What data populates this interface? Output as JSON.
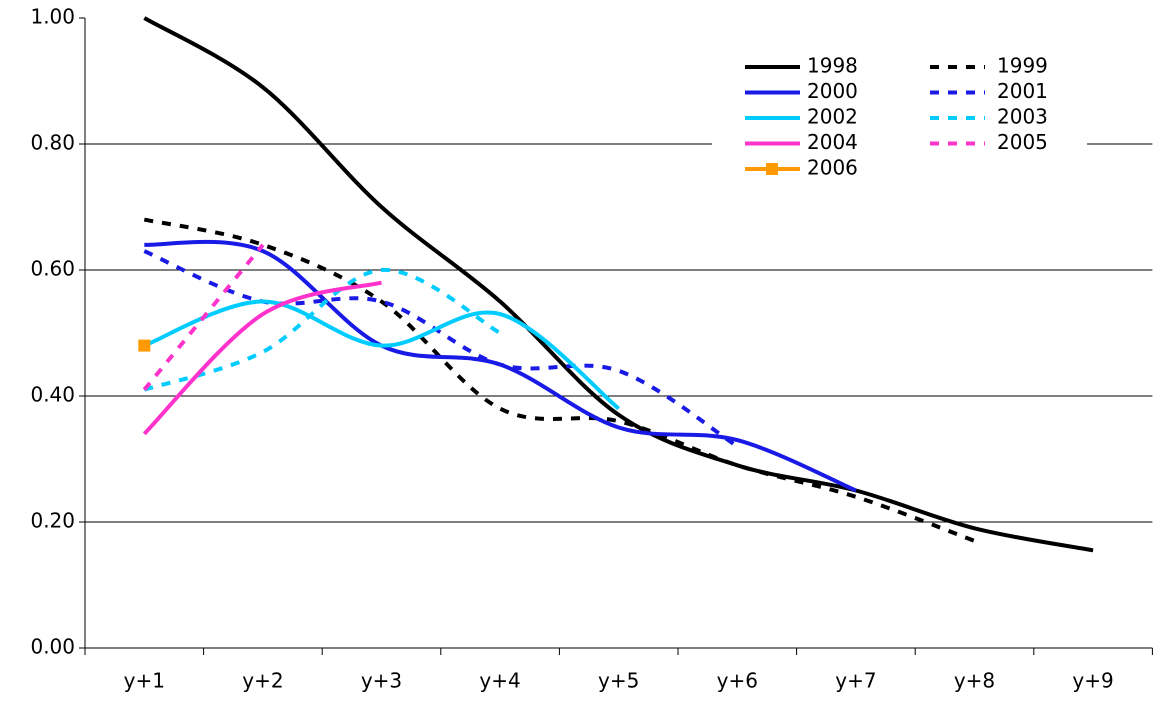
{
  "chart_data": {
    "type": "line",
    "categories": [
      "y+1",
      "y+2",
      "y+3",
      "y+4",
      "y+5",
      "y+6",
      "y+7",
      "y+8",
      "y+9"
    ],
    "ylim": [
      0,
      1
    ],
    "yticks": [
      {
        "value": 0,
        "label": "0.00"
      },
      {
        "value": 0.2,
        "label": "0.20"
      },
      {
        "value": 0.4,
        "label": "0.40"
      },
      {
        "value": 0.6,
        "label": "0.60"
      },
      {
        "value": 0.8,
        "label": "0.80"
      },
      {
        "value": 1,
        "label": "1.00"
      }
    ],
    "grid": true,
    "legend": "top-right",
    "series": [
      {
        "name": "1998",
        "color": "#000000",
        "dash": false,
        "values": [
          1.0,
          0.89,
          0.7,
          0.55,
          0.37,
          0.29,
          0.25,
          0.19,
          0.155
        ]
      },
      {
        "name": "1999",
        "color": "#000000",
        "dash": true,
        "values": [
          0.68,
          0.64,
          0.55,
          0.38,
          0.36,
          0.29,
          0.24,
          0.17,
          null
        ]
      },
      {
        "name": "2000",
        "color": "#1a1ae6",
        "dash": false,
        "values": [
          0.64,
          0.63,
          0.48,
          0.45,
          0.35,
          0.33,
          0.25,
          null,
          null
        ]
      },
      {
        "name": "2001",
        "color": "#1a1ae6",
        "dash": true,
        "values": [
          0.63,
          0.55,
          0.55,
          0.45,
          0.44,
          0.32,
          null,
          null,
          null
        ]
      },
      {
        "name": "2002",
        "color": "#00ccff",
        "dash": false,
        "values": [
          0.48,
          0.55,
          0.48,
          0.53,
          0.38,
          null,
          null,
          null,
          null
        ]
      },
      {
        "name": "2003",
        "color": "#00ccff",
        "dash": true,
        "values": [
          0.41,
          0.47,
          0.6,
          0.5,
          null,
          null,
          null,
          null,
          null
        ]
      },
      {
        "name": "2004",
        "color": "#ff33cc",
        "dash": false,
        "values": [
          0.34,
          0.53,
          0.58,
          null,
          null,
          null,
          null,
          null,
          null
        ]
      },
      {
        "name": "2005",
        "color": "#ff33cc",
        "dash": true,
        "values": [
          0.41,
          0.64,
          null,
          null,
          null,
          null,
          null,
          null,
          null
        ]
      },
      {
        "name": "2006",
        "color": "#ff9900",
        "dash": false,
        "marker": "square",
        "values": [
          0.48,
          null,
          null,
          null,
          null,
          null,
          null,
          null,
          null
        ]
      }
    ]
  }
}
